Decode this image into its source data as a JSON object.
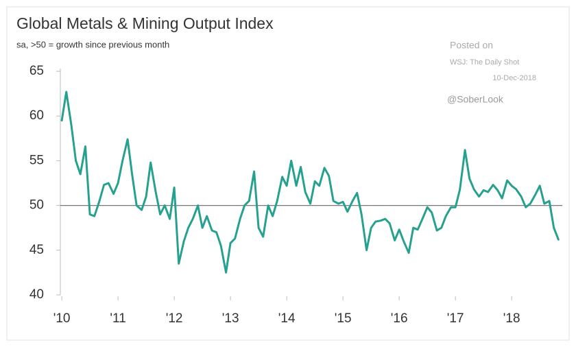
{
  "chart_data": {
    "type": "line",
    "title": "Global Metals & Mining Output Index",
    "subtitle": "sa, >50 = growth since previous month",
    "annotations": [
      "Posted on",
      "WSJ: The Daily Shot",
      "10-Dec-2018",
      "@SoberLook"
    ],
    "color": "#26a08f",
    "reference_line": 50,
    "x": [
      2010.0,
      2010.08,
      2010.17,
      2010.25,
      2010.33,
      2010.42,
      2010.5,
      2010.58,
      2010.67,
      2010.75,
      2010.83,
      2010.92,
      2011.0,
      2011.08,
      2011.17,
      2011.25,
      2011.33,
      2011.42,
      2011.5,
      2011.58,
      2011.67,
      2011.75,
      2011.83,
      2011.92,
      2012.0,
      2012.08,
      2012.17,
      2012.25,
      2012.33,
      2012.42,
      2012.5,
      2012.58,
      2012.67,
      2012.75,
      2012.83,
      2012.92,
      2013.0,
      2013.08,
      2013.17,
      2013.25,
      2013.33,
      2013.42,
      2013.5,
      2013.58,
      2013.67,
      2013.75,
      2013.83,
      2013.92,
      2014.0,
      2014.08,
      2014.17,
      2014.25,
      2014.33,
      2014.42,
      2014.5,
      2014.58,
      2014.67,
      2014.75,
      2014.83,
      2014.92,
      2015.0,
      2015.08,
      2015.17,
      2015.25,
      2015.33,
      2015.42,
      2015.5,
      2015.58,
      2015.67,
      2015.75,
      2015.83,
      2015.92,
      2016.0,
      2016.08,
      2016.17,
      2016.25,
      2016.33,
      2016.42,
      2016.5,
      2016.58,
      2016.67,
      2016.75,
      2016.83,
      2016.92,
      2017.0,
      2017.08,
      2017.17,
      2017.25,
      2017.33,
      2017.42,
      2017.5,
      2017.58,
      2017.67,
      2017.75,
      2017.83,
      2017.92,
      2018.0,
      2018.08,
      2018.17,
      2018.25,
      2018.33,
      2018.42,
      2018.5,
      2018.58,
      2018.67,
      2018.75,
      2018.83
    ],
    "values": [
      59.5,
      62.7,
      59,
      55,
      53.5,
      56.6,
      49,
      48.8,
      50.5,
      52.3,
      52.5,
      51.3,
      52.5,
      55,
      57.4,
      53.5,
      50,
      49.5,
      51,
      54.8,
      51.5,
      49,
      50,
      48.5,
      52,
      43.5,
      46,
      47.5,
      48.5,
      50,
      47.5,
      48.8,
      47.2,
      47,
      45.5,
      42.5,
      45.8,
      46.3,
      48.5,
      50,
      50.5,
      53.8,
      47.5,
      46.5,
      50,
      48.8,
      50.5,
      53.2,
      52.2,
      55,
      52.2,
      54.3,
      51.5,
      50.2,
      52.7,
      52.2,
      54.2,
      53.3,
      50.5,
      50.2,
      50.4,
      49.3,
      50.5,
      51.4,
      49,
      45,
      47.5,
      48.2,
      48.3,
      48.5,
      48,
      46.1,
      47.3,
      46,
      44.7,
      47.5,
      47.3,
      48.6,
      49.8,
      49.2,
      47.2,
      47.5,
      48.8,
      49.8,
      49.8,
      51.8,
      56.2,
      53,
      51.8,
      51,
      51.7,
      51.5,
      52.3,
      51.7,
      50.8,
      52.8,
      52.2,
      51.8,
      51,
      49.8,
      50.2,
      51.2,
      52.2,
      50.2,
      50.5,
      47.5,
      46.2
    ],
    "xlim": [
      2009.95,
      2018.9
    ],
    "xticks": [
      {
        "value": 2010,
        "label": "'10"
      },
      {
        "value": 2011,
        "label": "'11"
      },
      {
        "value": 2012,
        "label": "'12"
      },
      {
        "value": 2013,
        "label": "'13"
      },
      {
        "value": 2014,
        "label": "'14"
      },
      {
        "value": 2015,
        "label": "'15"
      },
      {
        "value": 2016,
        "label": "'16"
      },
      {
        "value": 2017,
        "label": "'17"
      },
      {
        "value": 2018,
        "label": "'18"
      }
    ],
    "ylim": [
      40,
      65
    ],
    "yticks": [
      40,
      45,
      50,
      55,
      60,
      65
    ]
  }
}
